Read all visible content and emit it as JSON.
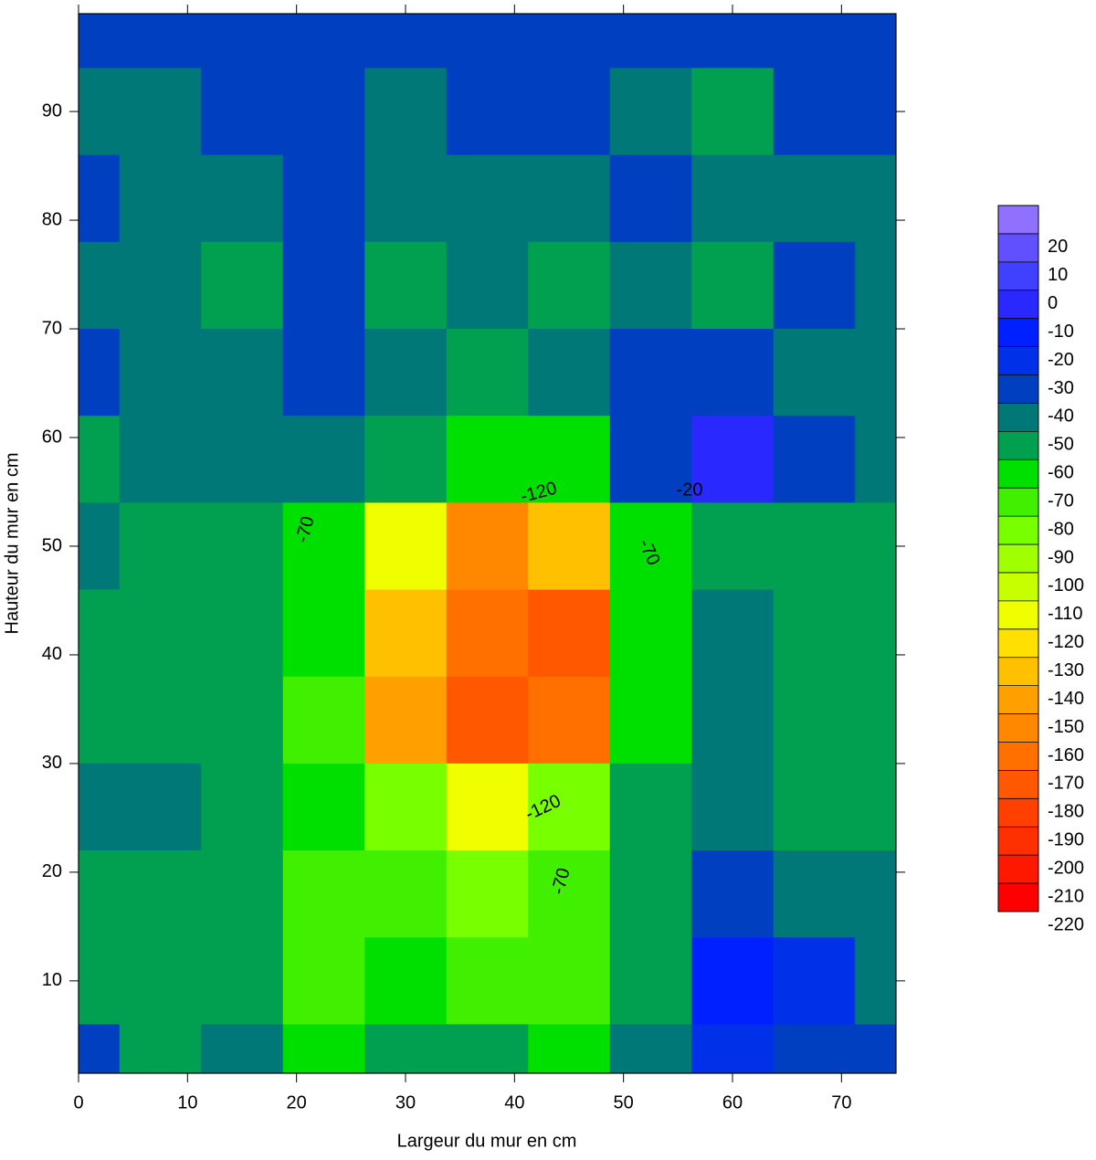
{
  "chart_data": {
    "type": "contour",
    "x_label": "Largeur du mur en cm",
    "y_label": "Hauteur du mur en cm",
    "x": [
      0,
      7.5,
      15,
      22.5,
      30,
      37.5,
      45,
      52.5,
      60,
      67.5,
      75
    ],
    "y": [
      98,
      90,
      82,
      74,
      66,
      58,
      50,
      42,
      34,
      26,
      18,
      10,
      2
    ],
    "z": [
      [
        -35,
        -38,
        -38,
        -38,
        -35,
        -38,
        -38,
        -38,
        -40,
        -38,
        -35
      ],
      [
        -45,
        -48,
        -38,
        -38,
        -45,
        -38,
        -38,
        -45,
        -55,
        -40,
        -38
      ],
      [
        -38,
        -45,
        -45,
        -38,
        -45,
        -45,
        -45,
        -38,
        -45,
        -45,
        -45
      ],
      [
        -45,
        -48,
        -52,
        -38,
        -52,
        -50,
        -55,
        -45,
        -55,
        -38,
        -45
      ],
      [
        -38,
        -45,
        -45,
        -38,
        -50,
        -55,
        -50,
        -38,
        -35,
        -45,
        -45
      ],
      [
        -52,
        -48,
        -50,
        -48,
        -60,
        -70,
        -62,
        -35,
        -10,
        -35,
        -45
      ],
      [
        -48,
        -60,
        -58,
        -62,
        -120,
        -160,
        -140,
        -65,
        -55,
        -55,
        -52
      ],
      [
        -55,
        -58,
        -55,
        -68,
        -140,
        -165,
        -175,
        -70,
        -50,
        -55,
        -52
      ],
      [
        -52,
        -60,
        -55,
        -75,
        -150,
        -180,
        -170,
        -65,
        -48,
        -55,
        -55
      ],
      [
        -50,
        -48,
        -55,
        -70,
        -90,
        -120,
        -90,
        -60,
        -50,
        -55,
        -55
      ],
      [
        -55,
        -58,
        -58,
        -72,
        -75,
        -85,
        -78,
        -58,
        -35,
        -45,
        -48
      ],
      [
        -52,
        -60,
        -55,
        -75,
        -62,
        -72,
        -72,
        -55,
        -15,
        -25,
        -48
      ],
      [
        -40,
        -55,
        -50,
        -62,
        -58,
        -58,
        -65,
        -50,
        -25,
        -40,
        -40
      ]
    ],
    "xlim": [
      0,
      75
    ],
    "ylim": [
      1.5,
      99
    ],
    "xticks": [
      0,
      10,
      20,
      30,
      40,
      50,
      60,
      70
    ],
    "yticks": [
      10,
      20,
      30,
      40,
      50,
      60,
      70,
      80,
      90
    ],
    "levels": [
      -220,
      -210,
      -200,
      -190,
      -180,
      -170,
      -160,
      -150,
      -140,
      -130,
      -120,
      -110,
      -100,
      -90,
      -80,
      -70,
      -60,
      -50,
      -40,
      -30,
      -20,
      -10,
      0,
      10,
      20,
      30
    ],
    "zticks": [
      -220,
      -210,
      -200,
      -190,
      -180,
      -170,
      -160,
      -150,
      -140,
      -130,
      -120,
      -110,
      -100,
      -90,
      -80,
      -70,
      -60,
      -50,
      -40,
      -30,
      -20,
      -10,
      0,
      10,
      20
    ],
    "colors": [
      "#ff0000",
      "#ff1800",
      "#ff3000",
      "#ff4000",
      "#ff5800",
      "#ff7000",
      "#ff8800",
      "#ffa000",
      "#ffc000",
      "#ffe000",
      "#f0ff00",
      "#c8ff00",
      "#a0ff00",
      "#78ff00",
      "#40f000",
      "#00e000",
      "#00a050",
      "#007878",
      "#0040c0",
      "#0030e8",
      "#0020ff",
      "#2828ff",
      "#4040ff",
      "#6050ff",
      "#9070ff"
    ],
    "annotations": [
      "-120",
      "-70",
      "-70",
      "-20",
      "-120",
      "-70"
    ]
  }
}
